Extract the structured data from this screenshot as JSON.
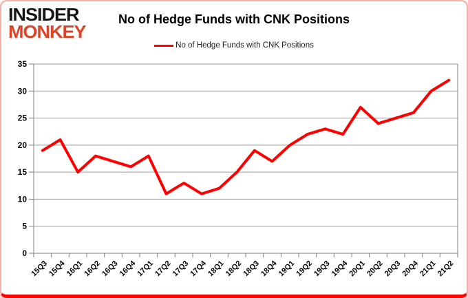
{
  "brand": {
    "line1": "INSIDER",
    "line2": "MONKEY"
  },
  "header": {
    "title": "No of Hedge Funds with CNK Positions"
  },
  "legend": {
    "label": "No of Hedge Funds with CNK Positions",
    "color": "#ff0000"
  },
  "chart_data": {
    "type": "line",
    "title": "No of Hedge Funds with CNK Positions",
    "series": [
      {
        "name": "No of Hedge Funds with CNK Positions",
        "values": [
          19,
          21,
          15,
          18,
          17,
          16,
          18,
          11,
          13,
          11,
          12,
          15,
          19,
          17,
          20,
          22,
          23,
          22,
          27,
          24,
          25,
          26,
          30,
          32
        ]
      }
    ],
    "categories": [
      "15Q3",
      "15Q4",
      "16Q1",
      "16Q2",
      "16Q3",
      "16Q4",
      "17Q1",
      "17Q2",
      "17Q3",
      "17Q4",
      "18Q1",
      "18Q2",
      "18Q3",
      "18Q4",
      "19Q1",
      "19Q2",
      "19Q3",
      "19Q4",
      "20Q1",
      "20Q2",
      "20Q3",
      "20Q4",
      "21Q1",
      "21Q2"
    ],
    "xlabel": "",
    "ylabel": "",
    "ylim": [
      0,
      35
    ],
    "ytick_step": 5,
    "grid": true,
    "legend_position": "top-center",
    "line_color": "#ff0000"
  },
  "colors": {
    "accent_red": "#ff0000",
    "brand_red": "#dd4327",
    "grid_gray": "#9b9b9b",
    "axis_gray": "#7f7f7f",
    "frame_border": "#f3aeaa"
  }
}
